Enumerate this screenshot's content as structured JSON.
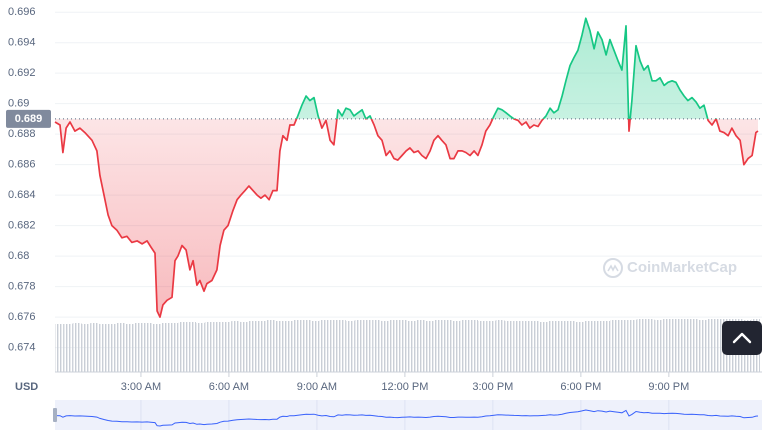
{
  "chart_data": {
    "type": "line",
    "currency": "USD",
    "watermark": "CoinMarketCap",
    "reference_line": 0.689,
    "ylim": [
      0.6724,
      0.6968
    ],
    "yticks": [
      0.696,
      0.694,
      0.692,
      0.69,
      0.688,
      0.686,
      0.684,
      0.682,
      0.68,
      0.678,
      0.676,
      0.674
    ],
    "xlim": [
      0.07,
      24.04
    ],
    "xticks": [
      {
        "value": 3,
        "label": "3:00 AM"
      },
      {
        "value": 6,
        "label": "6:00 AM"
      },
      {
        "value": 9,
        "label": "9:00 AM"
      },
      {
        "value": 12,
        "label": "12:00 PM"
      },
      {
        "value": 15,
        "label": "3:00 PM"
      },
      {
        "value": 18,
        "label": "6:00 PM"
      },
      {
        "value": 21,
        "label": "9:00 PM"
      }
    ],
    "grid": true,
    "up_color": "#16c784",
    "down_color": "#ea3943",
    "x": [
      0.07,
      0.24,
      0.34,
      0.45,
      0.58,
      0.75,
      0.92,
      1.09,
      1.33,
      1.5,
      1.6,
      1.74,
      1.88,
      2.01,
      2.18,
      2.35,
      2.52,
      2.69,
      2.87,
      3.04,
      3.21,
      3.34,
      3.48,
      3.55,
      3.65,
      3.75,
      3.89,
      4.06,
      4.16,
      4.26,
      4.4,
      4.54,
      4.67,
      4.78,
      4.91,
      5.01,
      5.15,
      5.25,
      5.42,
      5.59,
      5.7,
      5.83,
      5.97,
      6.14,
      6.28,
      6.41,
      6.55,
      6.68,
      6.82,
      6.96,
      7.09,
      7.23,
      7.37,
      7.5,
      7.64,
      7.74,
      7.84,
      7.98,
      8.08,
      8.22,
      8.35,
      8.49,
      8.63,
      8.76,
      8.9,
      9.04,
      9.17,
      9.31,
      9.45,
      9.58,
      9.72,
      9.86,
      9.99,
      10.13,
      10.26,
      10.4,
      10.54,
      10.67,
      10.81,
      10.95,
      11.08,
      11.22,
      11.36,
      11.49,
      11.63,
      11.76,
      11.9,
      12.04,
      12.17,
      12.31,
      12.45,
      12.58,
      12.72,
      12.86,
      12.99,
      13.13,
      13.26,
      13.4,
      13.54,
      13.67,
      13.81,
      13.95,
      14.08,
      14.22,
      14.36,
      14.49,
      14.63,
      14.76,
      14.9,
      15.04,
      15.17,
      15.31,
      15.45,
      15.58,
      15.72,
      15.86,
      15.99,
      16.13,
      16.26,
      16.4,
      16.54,
      16.67,
      16.81,
      16.95,
      17.08,
      17.22,
      17.36,
      17.49,
      17.63,
      17.76,
      17.9,
      18.04,
      18.17,
      18.31,
      18.45,
      18.58,
      18.72,
      18.86,
      18.99,
      19.13,
      19.27,
      19.4,
      19.54,
      19.64,
      19.74,
      19.88,
      20.02,
      20.15,
      20.29,
      20.43,
      20.56,
      20.7,
      20.84,
      20.97,
      21.11,
      21.24,
      21.38,
      21.52,
      21.65,
      21.79,
      21.93,
      22.06,
      22.2,
      22.34,
      22.47,
      22.61,
      22.74,
      22.88,
      23.02,
      23.15,
      23.29,
      23.43,
      23.56,
      23.7,
      23.84,
      23.97,
      24.04
    ],
    "values": [
      0.6888,
      0.6886,
      0.6868,
      0.6884,
      0.6888,
      0.6882,
      0.6884,
      0.6881,
      0.6876,
      0.6869,
      0.6853,
      0.684,
      0.6827,
      0.682,
      0.6817,
      0.6812,
      0.6813,
      0.6809,
      0.681,
      0.6808,
      0.681,
      0.6806,
      0.6802,
      0.6764,
      0.676,
      0.6768,
      0.6771,
      0.6773,
      0.6797,
      0.68,
      0.6807,
      0.6804,
      0.6791,
      0.6797,
      0.6781,
      0.6784,
      0.6777,
      0.6782,
      0.6784,
      0.6791,
      0.6807,
      0.6817,
      0.682,
      0.683,
      0.6837,
      0.684,
      0.6843,
      0.6846,
      0.6843,
      0.684,
      0.6838,
      0.684,
      0.6837,
      0.6843,
      0.6843,
      0.6869,
      0.6879,
      0.6876,
      0.6886,
      0.6886,
      0.6892,
      0.6899,
      0.6905,
      0.6902,
      0.6904,
      0.6892,
      0.6884,
      0.6889,
      0.6876,
      0.6873,
      0.6896,
      0.6892,
      0.6897,
      0.6896,
      0.6892,
      0.6894,
      0.6896,
      0.689,
      0.6892,
      0.6886,
      0.6879,
      0.6876,
      0.6866,
      0.6869,
      0.6864,
      0.6863,
      0.6866,
      0.6869,
      0.6871,
      0.6868,
      0.6869,
      0.6866,
      0.6864,
      0.6869,
      0.6876,
      0.6879,
      0.6876,
      0.6873,
      0.6864,
      0.6864,
      0.6869,
      0.6869,
      0.6868,
      0.6866,
      0.6869,
      0.6866,
      0.6873,
      0.6882,
      0.6886,
      0.6892,
      0.6897,
      0.6896,
      0.6894,
      0.6892,
      0.689,
      0.6889,
      0.6886,
      0.6888,
      0.6884,
      0.6886,
      0.6885,
      0.6889,
      0.6892,
      0.6897,
      0.6894,
      0.6896,
      0.6905,
      0.6915,
      0.6925,
      0.693,
      0.6935,
      0.6945,
      0.6956,
      0.6948,
      0.6936,
      0.6947,
      0.6942,
      0.6932,
      0.6942,
      0.6935,
      0.6928,
      0.6922,
      0.6951,
      0.6882,
      0.6902,
      0.6938,
      0.6928,
      0.6922,
      0.6925,
      0.6915,
      0.6915,
      0.6917,
      0.6912,
      0.6914,
      0.6915,
      0.6914,
      0.6909,
      0.6905,
      0.6902,
      0.6904,
      0.6901,
      0.6897,
      0.6899,
      0.6889,
      0.6886,
      0.689,
      0.6882,
      0.6881,
      0.6879,
      0.6884,
      0.6879,
      0.6876,
      0.686,
      0.6864,
      0.6866,
      0.6881,
      0.6882
    ],
    "volume": {
      "color": "#c3c8d1",
      "ylim": [
        0,
        100
      ],
      "values": [
        48,
        48,
        49,
        48,
        49,
        48,
        48,
        49,
        48,
        49,
        49,
        48,
        49,
        49,
        50,
        50,
        49,
        50,
        50,
        50,
        51,
        50,
        51,
        51,
        52,
        51,
        51,
        52,
        52,
        51,
        52,
        52,
        52,
        51,
        52,
        52,
        52,
        51,
        52,
        52,
        51,
        52,
        51,
        52,
        52,
        51,
        52,
        52,
        51,
        51,
        52,
        51,
        51,
        51,
        51,
        50,
        51,
        51,
        51,
        50,
        51,
        51,
        51,
        52,
        52,
        52,
        53,
        53,
        52,
        53,
        53,
        53,
        53,
        52,
        53,
        53,
        53,
        53,
        52,
        53
      ]
    },
    "navigator_color": "#3861fb"
  }
}
